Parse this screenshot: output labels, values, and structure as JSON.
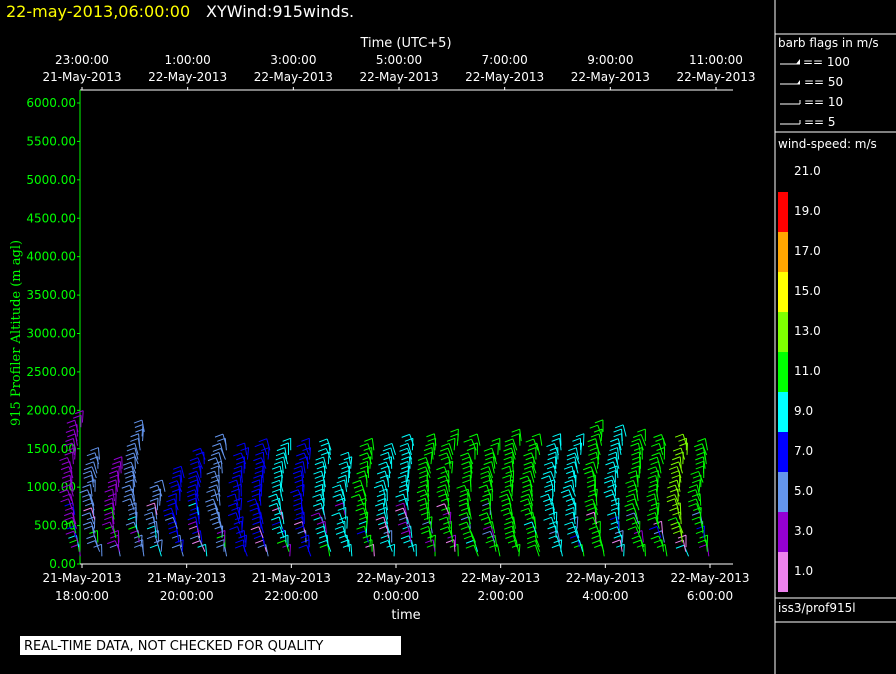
{
  "header": {
    "datetime": "22-may-2013,06:00:00",
    "title": "XYWind:915winds."
  },
  "footer": {
    "notice": "REAL-TIME DATA, NOT CHECKED FOR QUALITY",
    "source": "iss3/prof915l"
  },
  "legend": {
    "barb_title": "barb flags in m/s",
    "barb_entries": [
      "== 100",
      "== 50",
      "== 10",
      "== 5"
    ],
    "speed_title": "wind-speed: m/s",
    "speed_colors": [
      "#ee82ee",
      "#9400d3",
      "#6495ed",
      "#0000ff",
      "#00ffff",
      "#00ff00",
      "#7fff00",
      "#ffff00",
      "#ffa500",
      "#ff0000"
    ],
    "speed_labels": [
      "1.0",
      "3.0",
      "5.0",
      "7.0",
      "9.0",
      "11.0",
      "13.0",
      "15.0",
      "17.0",
      "19.0",
      "21.0"
    ]
  },
  "colors": {
    "axis_y": "#00ff00",
    "title_date": "#ffff00",
    "text": "#ffffff"
  },
  "chart_data": {
    "type": "wind_barbs",
    "xlabel": "time",
    "top_xlabel": "Time (UTC+5)",
    "ylabel": "915 Profiler Altitude (m agl)",
    "ylim": [
      0,
      6000
    ],
    "y_ticks": [
      "0.00",
      "500.00",
      "1000.00",
      "1500.00",
      "2000.00",
      "2500.00",
      "3000.00",
      "3500.00",
      "4000.00",
      "4500.00",
      "5000.00",
      "5500.00",
      "6000.00"
    ],
    "x_ticks": [
      {
        "time": "18:00:00",
        "date": "21-May-2013"
      },
      {
        "time": "20:00:00",
        "date": "21-May-2013"
      },
      {
        "time": "22:00:00",
        "date": "21-May-2013"
      },
      {
        "time": "0:00:00",
        "date": "22-May-2013"
      },
      {
        "time": "2:00:00",
        "date": "22-May-2013"
      },
      {
        "time": "4:00:00",
        "date": "22-May-2013"
      },
      {
        "time": "6:00:00",
        "date": "22-May-2013"
      }
    ],
    "top_x_ticks": [
      {
        "time": "23:00:00",
        "date": "21-May-2013"
      },
      {
        "time": "1:00:00",
        "date": "22-May-2013"
      },
      {
        "time": "3:00:00",
        "date": "22-May-2013"
      },
      {
        "time": "5:00:00",
        "date": "22-May-2013"
      },
      {
        "time": "7:00:00",
        "date": "22-May-2013"
      },
      {
        "time": "9:00:00",
        "date": "22-May-2013"
      },
      {
        "time": "11:00:00",
        "date": "22-May-2013"
      }
    ],
    "profile_times_hours": [
      18.0,
      18.4,
      18.8,
      19.2,
      19.6,
      20.0,
      20.4,
      20.8,
      21.2,
      21.6,
      22.0,
      22.4,
      22.8,
      23.2,
      23.6,
      24.0,
      24.4,
      24.8,
      25.2,
      25.6,
      26.0,
      26.4,
      26.8,
      27.2,
      27.6,
      28.0,
      28.4,
      28.8,
      29.2,
      29.6,
      30.0
    ],
    "profile_tops_m": [
      1900,
      1450,
      1300,
      1800,
      1000,
      1200,
      1450,
      1600,
      1500,
      1550,
      1550,
      1550,
      1550,
      1400,
      1550,
      1500,
      1650,
      1650,
      1700,
      1600,
      1550,
      1700,
      1650,
      1650,
      1650,
      1800,
      1750,
      1700,
      1650,
      1600,
      1550
    ],
    "profile_colors": [
      "#9400d3",
      "#6495ed",
      "#9400d3",
      "#6495ed",
      "#6495ed",
      "#0000ff",
      "#0000ff",
      "#6495ed",
      "#0000ff",
      "#0000ff",
      "#00ffff",
      "#0000ff",
      "#00ffff",
      "#00ffff",
      "#00ff00",
      "#00ffff",
      "#00ffff",
      "#00ff00",
      "#00ff00",
      "#00ff00",
      "#00ff00",
      "#00ff00",
      "#00ff00",
      "#00ffff",
      "#00ffff",
      "#00ff00",
      "#00ffff",
      "#00ff00",
      "#00ff00",
      "#7fff00",
      "#00ff00"
    ]
  }
}
